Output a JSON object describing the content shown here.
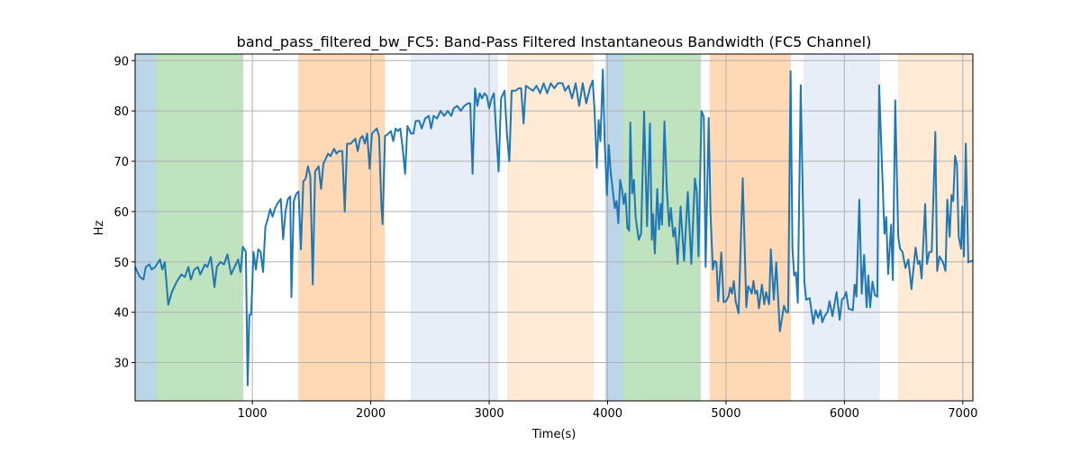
{
  "chart_data": {
    "type": "line",
    "title": "band_pass_filtered_bw_FC5: Band-Pass Filtered Instantaneous Bandwidth (FC5 Channel)",
    "xlabel": "Time(s)",
    "ylabel": "Hz",
    "xlim": [
      10,
      7085
    ],
    "ylim": [
      22.4,
      91.3
    ],
    "xticks": [
      1000,
      2000,
      3000,
      4000,
      5000,
      6000,
      7000
    ],
    "yticks": [
      30,
      40,
      50,
      60,
      70,
      80,
      90
    ],
    "grid": true,
    "line_color": "#1f77b4",
    "spans": [
      {
        "start": 10,
        "end": 194,
        "color": "#1f77b4",
        "alpha": 0.3
      },
      {
        "start": 194,
        "end": 924,
        "color": "#2ca02c",
        "alpha": 0.3
      },
      {
        "start": 1388,
        "end": 2118,
        "color": "#ff7f0e",
        "alpha": 0.3
      },
      {
        "start": 2338,
        "end": 3076,
        "color": "#aec7e8",
        "alpha": 0.3
      },
      {
        "start": 3152,
        "end": 3882,
        "color": "#ffbb78",
        "alpha": 0.3
      },
      {
        "start": 3981,
        "end": 4133,
        "color": "#1f77b4",
        "alpha": 0.3
      },
      {
        "start": 4133,
        "end": 4787,
        "color": "#2ca02c",
        "alpha": 0.3
      },
      {
        "start": 4863,
        "end": 5548,
        "color": "#ff7f0e",
        "alpha": 0.3
      },
      {
        "start": 5654,
        "end": 6300,
        "color": "#aec7e8",
        "alpha": 0.3
      },
      {
        "start": 6452,
        "end": 7085,
        "color": "#ffbb78",
        "alpha": 0.3
      }
    ],
    "series": [
      {
        "name": "band_pass_filtered_bw_FC5",
        "x": [
          10,
          50,
          80,
          100,
          130,
          150,
          180,
          220,
          240,
          260,
          290,
          320,
          360,
          400,
          430,
          460,
          480,
          510,
          540,
          560,
          600,
          620,
          650,
          680,
          700,
          730,
          760,
          790,
          820,
          850,
          880,
          900,
          920,
          945,
          960,
          975,
          990,
          1010,
          1030,
          1050,
          1070,
          1090,
          1110,
          1130,
          1150,
          1170,
          1190,
          1210,
          1240,
          1260,
          1280,
          1300,
          1320,
          1330,
          1350,
          1370,
          1390,
          1410,
          1430,
          1450,
          1470,
          1490,
          1510,
          1530,
          1560,
          1580,
          1600,
          1620,
          1640,
          1660,
          1690,
          1710,
          1730,
          1760,
          1780,
          1800,
          1830,
          1850,
          1870,
          1890,
          1910,
          1930,
          1950,
          1970,
          1990,
          2010,
          2030,
          2050,
          2070,
          2090,
          2100,
          2120,
          2150,
          2170,
          2190,
          2210,
          2230,
          2250,
          2270,
          2290,
          2310,
          2340,
          2360,
          2380,
          2410,
          2430,
          2460,
          2490,
          2510,
          2530,
          2560,
          2590,
          2620,
          2650,
          2680,
          2700,
          2730,
          2760,
          2790,
          2820,
          2840,
          2860,
          2880,
          2900,
          2920,
          2940,
          2960,
          2980,
          3000,
          3020,
          3040,
          3060,
          3080,
          3100,
          3130,
          3150,
          3170,
          3190,
          3220,
          3250,
          3270,
          3290,
          3310,
          3340,
          3370,
          3400,
          3430,
          3460,
          3490,
          3520,
          3550,
          3580,
          3620,
          3640,
          3670,
          3700,
          3730,
          3760,
          3790,
          3820,
          3850,
          3874,
          3889,
          3909,
          3924,
          3939,
          3960,
          3975,
          3995,
          4010,
          4025,
          4045,
          4061,
          4076,
          4091,
          4106,
          4121,
          4136,
          4151,
          4167,
          4182,
          4192,
          4207,
          4222,
          4237,
          4263,
          4283,
          4308,
          4333,
          4358,
          4374,
          4384,
          4399,
          4419,
          4434,
          4449,
          4460,
          4480,
          4500,
          4520,
          4535,
          4555,
          4570,
          4591,
          4616,
          4646,
          4677,
          4707,
          4737,
          4753,
          4768,
          4793,
          4813,
          4828,
          4854,
          4869,
          4889,
          4904,
          4919,
          4934,
          4960,
          4980,
          5000,
          5020,
          5035,
          5050,
          5066,
          5081,
          5106,
          5141,
          5172,
          5187,
          5202,
          5217,
          5232,
          5247,
          5263,
          5278,
          5303,
          5323,
          5338,
          5364,
          5379,
          5404,
          5424,
          5455,
          5490,
          5510,
          5525,
          5545,
          5561,
          5576,
          5591,
          5606,
          5631,
          5662,
          5677,
          5707,
          5737,
          5757,
          5778,
          5798,
          5813,
          5833,
          5859,
          5874,
          5899,
          5934,
          5960,
          5980,
          5995,
          6015,
          6035,
          6071,
          6086,
          6101,
          6126,
          6146,
          6167,
          6187,
          6202,
          6217,
          6237,
          6257,
          6278,
          6293,
          6338,
          6353,
          6369,
          6394,
          6409,
          6429,
          6454,
          6470,
          6490,
          6515,
          6540,
          6566,
          6601,
          6621,
          6636,
          6652,
          6682,
          6697,
          6717,
          6737,
          6768,
          6783,
          6803,
          6833,
          6854,
          6869,
          6889,
          6904,
          6919,
          6934,
          6950,
          6965,
          6985,
          6995,
          7010,
          7025,
          7046,
          7071,
          7085
        ],
        "y": [
          49,
          47,
          46.5,
          49,
          49.5,
          48.5,
          49,
          50.5,
          48.5,
          50,
          41.5,
          44,
          46,
          47.5,
          47,
          49,
          46.5,
          48.5,
          49,
          47.5,
          49.5,
          49,
          51,
          45,
          49,
          50,
          49.5,
          51.5,
          47.5,
          49,
          50.5,
          48,
          53,
          52,
          25.5,
          39.5,
          39.5,
          52,
          48.5,
          52.5,
          52,
          48,
          57,
          58.5,
          60.5,
          59,
          60.5,
          61.5,
          62.5,
          54.5,
          60,
          62.5,
          63,
          43,
          62,
          63.5,
          64,
          52.5,
          66,
          66.5,
          69,
          67,
          45.5,
          68,
          69,
          64.5,
          69.5,
          70.5,
          71.5,
          71,
          72.5,
          71.5,
          72,
          72,
          60,
          73.5,
          73.5,
          74,
          74.5,
          72,
          74.5,
          75,
          73.5,
          75.5,
          68.5,
          75.5,
          76,
          76.5,
          75,
          61,
          57.5,
          75,
          75.5,
          76,
          74,
          76.5,
          76,
          76.5,
          72.5,
          67.5,
          77,
          75.5,
          75.5,
          78,
          78,
          76.5,
          78.5,
          79,
          76.5,
          79,
          78.5,
          80,
          79,
          80,
          79,
          80.5,
          81,
          80,
          81,
          81.5,
          81.5,
          67.5,
          84.5,
          81,
          83.5,
          82.5,
          83.5,
          83,
          80.5,
          82.5,
          83.5,
          75.5,
          68,
          82.5,
          84,
          75.5,
          70,
          84,
          84,
          84.5,
          84.5,
          77.5,
          85,
          84.5,
          84,
          85,
          83.5,
          85.5,
          83.5,
          85.5,
          84.5,
          85.5,
          85.5,
          84,
          85,
          82.5,
          85.5,
          81,
          85.5,
          81.5,
          84.5,
          86,
          80.5,
          68.7,
          78.2,
          74,
          88.2,
          74,
          63.3,
          73.2,
          68.1,
          63.9,
          60.7,
          62.1,
          57.7,
          66.3,
          64.5,
          61.5,
          63.6,
          56.8,
          56.2,
          77.7,
          63.6,
          66.3,
          58.9,
          54.4,
          55.6,
          79.9,
          57.1,
          77.5,
          54.4,
          59.5,
          51.7,
          64.5,
          56.5,
          61.5,
          57.4,
          77.9,
          64.5,
          57.1,
          60.7,
          55,
          56.8,
          49.6,
          61,
          50.2,
          63.9,
          49.6,
          66.6,
          63.9,
          51.1,
          80,
          78.8,
          49,
          78.6,
          59.8,
          48.5,
          50.2,
          49.9,
          42.2,
          51.9,
          42,
          42.2,
          43.1,
          44.9,
          43.7,
          46.2,
          42.2,
          39.8,
          66.6,
          41,
          45.2,
          44.6,
          43.7,
          46.2,
          43.7,
          44.3,
          40.8,
          45.5,
          41.6,
          44,
          41.6,
          52.5,
          42.5,
          49.9,
          36.2,
          41.3,
          40,
          40,
          87.9,
          52.6,
          47.3,
          47.9,
          41.9,
          85.1,
          46.1,
          42.5,
          42.8,
          37.7,
          40.4,
          38.9,
          40.4,
          38,
          39.2,
          40.1,
          42.2,
          39.2,
          44,
          38.5,
          42.6,
          42.8,
          44,
          40.7,
          40.4,
          45.5,
          43.1,
          62.4,
          43.7,
          51.4,
          41,
          47.3,
          41,
          46.1,
          43.4,
          43.1,
          85.1,
          55.6,
          58.9,
          47.6,
          57.4,
          46.4,
          82.1,
          55,
          52.6,
          52,
          48.8,
          50.5,
          44.6,
          52.9,
          49.6,
          50.2,
          46.7,
          61.5,
          49.6,
          52,
          52,
          75.8,
          48.2,
          51.1,
          49.9,
          48.2,
          62.4,
          55,
          63.3,
          62.1,
          71.1,
          69.3,
          55,
          52.6,
          61,
          51.1,
          73.5,
          49.9,
          50.2,
          50.2
        ]
      }
    ]
  }
}
